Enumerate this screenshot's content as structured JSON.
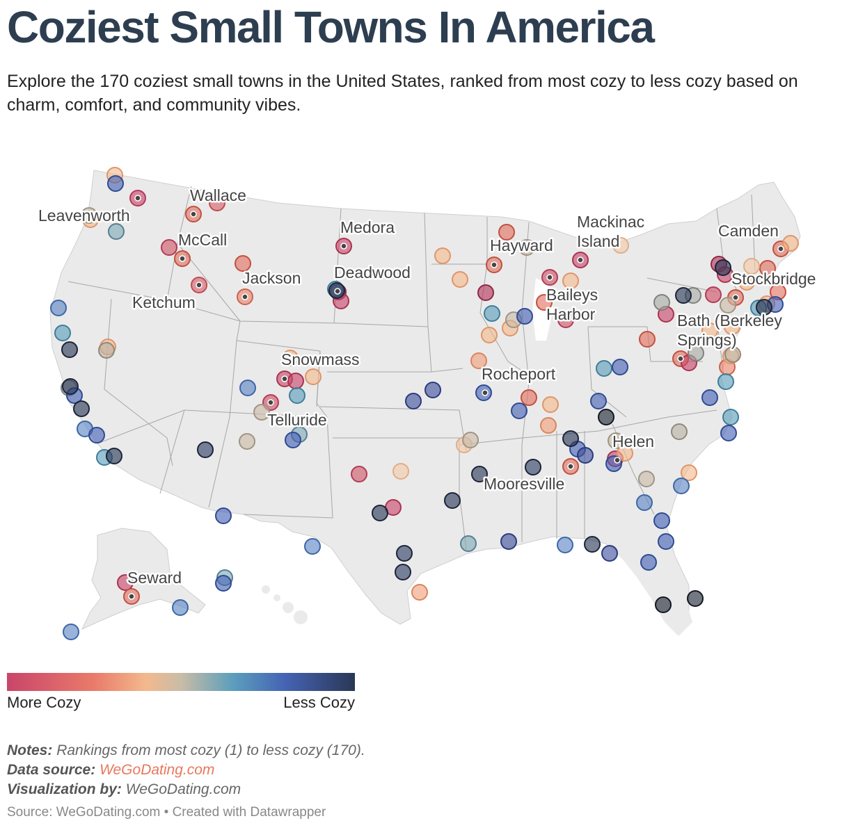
{
  "header": {
    "title": "Coziest Small Towns In America",
    "subtitle": "Explore the 170 coziest small towns in the United States, ranked from most cozy to less cozy based on charm, comfort, and community vibes."
  },
  "colors": {
    "most_cozy": "#c9456a",
    "cozy": "#e97b6a",
    "mid_warm": "#f3b98d",
    "neutral": "#c9bca7",
    "teal": "#5b9ebc",
    "less_cozy": "#4563b4",
    "least_cozy": "#2a3755",
    "land": "#eaeaea",
    "border": "#9a9a9a"
  },
  "labeled_towns": [
    "Leavenworth",
    "Wallace",
    "McCall",
    "Ketchum",
    "Jackson",
    "Medora",
    "Deadwood",
    "Snowmass",
    "Telluride",
    "Hayward",
    "Mackinac Island",
    "Baileys Harbor",
    "Rocheport",
    "Mooresville",
    "Helen",
    "Camden",
    "Stockbridge",
    "Bath (Berkeley Springs)",
    "Seward"
  ],
  "legend": {
    "left_label": "More Cozy",
    "right_label": "Less Cozy"
  },
  "notes": {
    "notes_label": "Notes:",
    "notes_text": "Rankings from most cozy (1) to less cozy (170).",
    "source_label": "Data source:",
    "source_link": "WeGoDating.com",
    "viz_label": "Visualization by:",
    "viz_text": "WeGoDating.com"
  },
  "footer": "Source: WeGoDating.com • Created with Datawrapper"
}
